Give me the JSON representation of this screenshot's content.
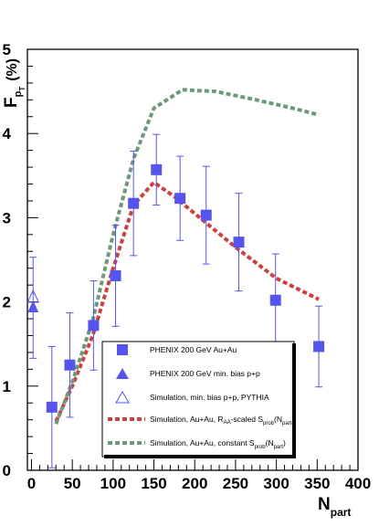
{
  "chart_data": {
    "type": "scatter",
    "xlabel": "N",
    "xlabel_sub": "part",
    "ylabel": "F",
    "ylabel_sub": "p",
    "ylabel_subsub": "T",
    "ylabel_unit": "(%)",
    "xlim": [
      -5,
      400
    ],
    "ylim": [
      0,
      5
    ],
    "x_ticks": [
      "0",
      "50",
      "100",
      "150",
      "200",
      "250",
      "300",
      "350",
      "400"
    ],
    "y_ticks": [
      "0",
      "1",
      "2",
      "3",
      "4",
      "5"
    ],
    "grid": false,
    "legend_position": "bottom-right",
    "series": [
      {
        "name": "PHENIX 200 GeV Au+Au",
        "kind": "points",
        "marker": "square",
        "color": "#5555ee",
        "points": [
          {
            "x": 25,
            "y": 0.75,
            "yerr": 0.72
          },
          {
            "x": 47,
            "y": 1.25,
            "yerr": 0.62
          },
          {
            "x": 76,
            "y": 1.72,
            "yerr": 0.53
          },
          {
            "x": 103,
            "y": 2.31,
            "yerr": 0.6
          },
          {
            "x": 125,
            "y": 3.17,
            "yerr": 0.62
          },
          {
            "x": 153,
            "y": 3.57,
            "yerr": 0.42
          },
          {
            "x": 182,
            "y": 3.23,
            "yerr": 0.5
          },
          {
            "x": 214,
            "y": 3.03,
            "yerr": 0.58
          },
          {
            "x": 254,
            "y": 2.71,
            "yerr": 0.58
          },
          {
            "x": 299,
            "y": 2.02,
            "yerr": 0.55
          },
          {
            "x": 352,
            "y": 1.47,
            "yerr": 0.48
          }
        ]
      },
      {
        "name": "PHENIX 200 GeV min. bias p+p",
        "kind": "points",
        "marker": "triangle",
        "color": "#5555ee",
        "points": [
          {
            "x": 2,
            "y": 1.93,
            "yerr": 0.6
          }
        ]
      },
      {
        "name": "Simulation, min. bias p+p, PYTHIA",
        "kind": "points",
        "marker": "triangle-open",
        "color": "#5555ee",
        "points": [
          {
            "x": 2,
            "y": 2.05,
            "yerr": 0
          }
        ]
      },
      {
        "name": "Simulation, Au+Au, R_AA-scaled S_prob(N_part)",
        "kind": "line",
        "dash": "dashed",
        "color": "#cc4040",
        "points": [
          {
            "x": 30,
            "y": 0.58
          },
          {
            "x": 50,
            "y": 1.0
          },
          {
            "x": 75,
            "y": 1.6
          },
          {
            "x": 100,
            "y": 2.4
          },
          {
            "x": 125,
            "y": 3.15
          },
          {
            "x": 150,
            "y": 3.42
          },
          {
            "x": 175,
            "y": 3.25
          },
          {
            "x": 200,
            "y": 3.05
          },
          {
            "x": 250,
            "y": 2.65
          },
          {
            "x": 300,
            "y": 2.28
          },
          {
            "x": 352,
            "y": 2.03
          }
        ]
      },
      {
        "name": "Simulation, Au+Au, constant S_prob(N_part)",
        "kind": "line",
        "dash": "dashed",
        "color": "#6b9a7a",
        "points": [
          {
            "x": 30,
            "y": 0.55
          },
          {
            "x": 50,
            "y": 1.05
          },
          {
            "x": 75,
            "y": 1.78
          },
          {
            "x": 100,
            "y": 2.8
          },
          {
            "x": 125,
            "y": 3.7
          },
          {
            "x": 150,
            "y": 4.3
          },
          {
            "x": 185,
            "y": 4.52
          },
          {
            "x": 225,
            "y": 4.5
          },
          {
            "x": 275,
            "y": 4.4
          },
          {
            "x": 320,
            "y": 4.3
          },
          {
            "x": 352,
            "y": 4.22
          }
        ]
      }
    ],
    "legend": [
      {
        "label": "PHENIX 200 GeV Au+Au"
      },
      {
        "label": "PHENIX 200 GeV min. bias p+p"
      },
      {
        "label": "Simulation, min. bias p+p, PYTHIA"
      },
      {
        "label": "Simulation, Au+Au, R",
        "sub1": "AA",
        "mid": "-scaled S",
        "sub2": "prob",
        "tail": "(N",
        "sub3": "part",
        "end": ")"
      },
      {
        "label": "Simulation, Au+Au, constant S",
        "sub2": "prob",
        "tail": "(N",
        "sub3": "part",
        "end": ")"
      }
    ]
  }
}
